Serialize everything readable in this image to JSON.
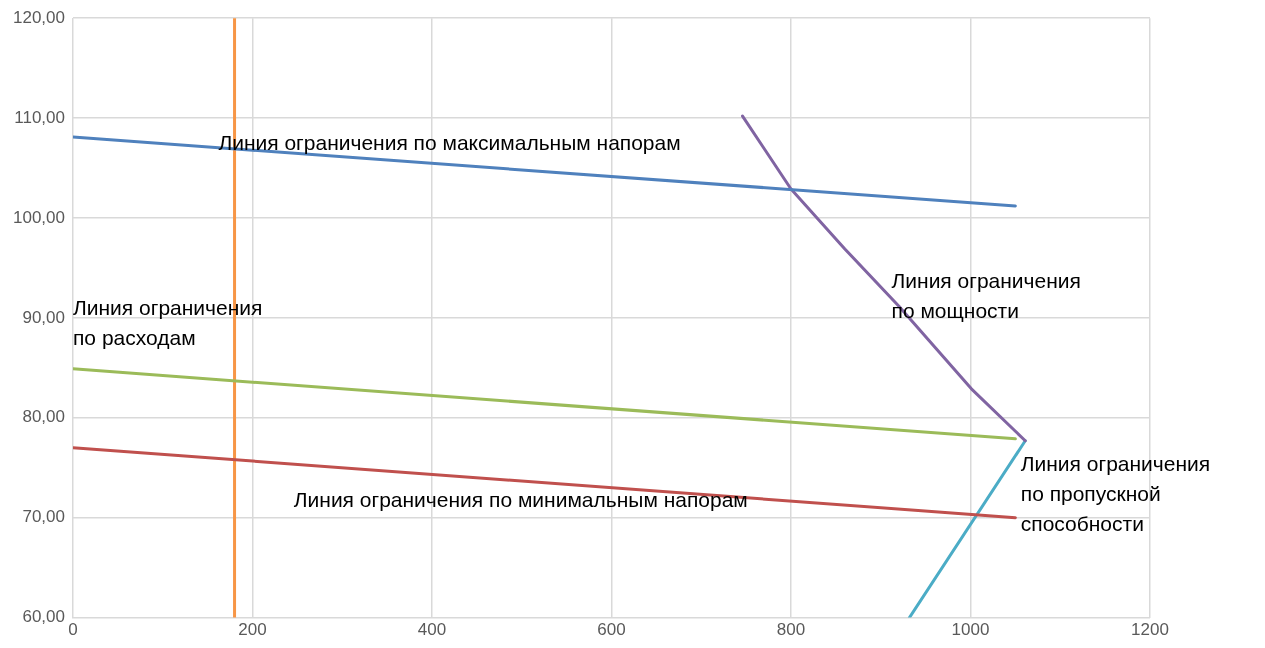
{
  "chart_data": {
    "type": "line",
    "series": [
      {
        "color": "#4f81bd",
        "x": [
          0,
          1050
        ],
        "values": [
          108.1,
          101.2
        ]
      },
      {
        "color": "#9bbb59",
        "x": [
          0,
          1050
        ],
        "values": [
          84.9,
          77.9
        ]
      },
      {
        "color": "#c0504d",
        "x": [
          0,
          1050
        ],
        "values": [
          77.0,
          70.0
        ]
      },
      {
        "color": "#f79646",
        "x": [
          180,
          180
        ],
        "values": [
          60,
          120
        ]
      },
      {
        "color": "#8064a2",
        "x": [
          746,
          800,
          860,
          920,
          1001,
          1061
        ],
        "values": [
          110.2,
          102.9,
          96.9,
          91.2,
          82.9,
          77.7
        ]
      },
      {
        "color": "#4bacc6",
        "x": [
          932,
          1061
        ],
        "values": [
          60,
          77.7
        ]
      }
    ],
    "xlim": [
      0,
      1200
    ],
    "xticks": [
      0,
      200,
      400,
      600,
      800,
      1000,
      1200
    ],
    "ylim": [
      60,
      120
    ],
    "yticks": [
      {
        "value": 60,
        "label": "60,00"
      },
      {
        "value": 70,
        "label": "70,00"
      },
      {
        "value": 80,
        "label": "80,00"
      },
      {
        "value": 90,
        "label": "90,00"
      },
      {
        "value": 100,
        "label": "100,00"
      },
      {
        "value": 110,
        "label": "110,00"
      },
      {
        "value": 120,
        "label": "120,00"
      }
    ],
    "grid": true,
    "marker": "none",
    "line_style": "solid",
    "annotations": [
      "Линия ограничения по максимальным напорам",
      "Линия ограничения\nпо расходам",
      "Линия ограничения\nпо мощности",
      "Линия ограничения по минимальным напорам",
      "Линия ограничения\nпо пропускной\nспособности"
    ]
  }
}
